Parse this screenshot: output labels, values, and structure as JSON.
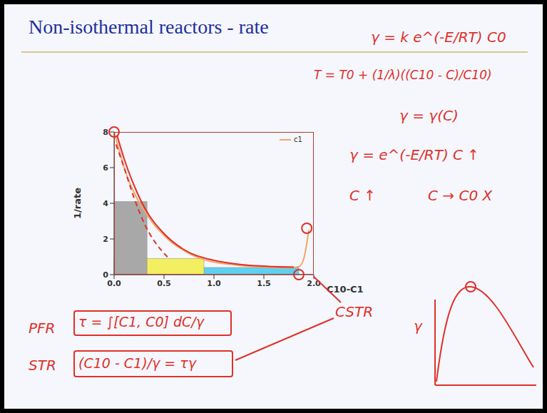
{
  "chart_data": {
    "type": "line",
    "title": "Non-isothermal reactors - rate",
    "x_label": "C10-C1",
    "y_label": "1/rate",
    "xlim": [
      0,
      2
    ],
    "xticks": [
      {
        "value": 0,
        "label": "0.0"
      },
      {
        "value": 0.5,
        "label": "0.5"
      },
      {
        "value": 1,
        "label": "1.0"
      },
      {
        "value": 1.5,
        "label": "1.5"
      },
      {
        "value": 2,
        "label": "2.0"
      }
    ],
    "ylim": [
      0,
      8
    ],
    "yticks": [
      0,
      2,
      4,
      6,
      8
    ],
    "legend": "upper right",
    "series": [
      {
        "name": "c1",
        "color": "#f0a868",
        "line_style": "solid",
        "x": [
          0.0,
          0.05,
          0.1,
          0.2,
          0.3,
          0.4,
          0.5,
          0.6,
          0.7,
          0.8,
          0.9,
          1.0,
          1.2,
          1.4,
          1.6,
          1.75,
          1.85,
          1.9,
          1.95
        ],
        "values": [
          8.0,
          7.0,
          6.0,
          4.6,
          3.6,
          2.8,
          2.2,
          1.7,
          1.35,
          1.05,
          0.85,
          0.7,
          0.55,
          0.45,
          0.4,
          0.38,
          0.45,
          0.9,
          2.5
        ]
      },
      {
        "color": "#e0302a",
        "line_style": "solid",
        "x": [
          0.03,
          0.1,
          0.2,
          0.3,
          0.5,
          0.7,
          1.0,
          1.3,
          1.6,
          1.8
        ],
        "values": [
          7.8,
          6.5,
          5.0,
          3.8,
          2.3,
          1.4,
          0.8,
          0.55,
          0.45,
          0.42
        ]
      },
      {
        "color": "#e0302a",
        "line_style": "dashed",
        "x": [
          0.02,
          0.1,
          0.2,
          0.3,
          0.4,
          0.5,
          0.55
        ],
        "values": [
          7.3,
          6.0,
          4.3,
          2.9,
          1.9,
          1.2,
          0.9
        ]
      }
    ],
    "rectangles": [
      {
        "x": [
          0,
          1.85
        ],
        "height": 0.4,
        "color": "#5fd0f0"
      },
      {
        "x": [
          0,
          0.9
        ],
        "height": 0.9,
        "color": "#f2f060"
      },
      {
        "x": [
          0,
          0.33
        ],
        "height": 4.1,
        "color": "#a8a8a8"
      }
    ],
    "markers": [
      {
        "x": 0,
        "y": 8
      },
      {
        "x": 1.93,
        "y": 2.6
      },
      {
        "x": 1.85,
        "y": 0
      }
    ],
    "annotations": [
      "γ = k e^(-E/RT) C0",
      "T = T0 + (1/λ)((C10 - C)/C10)",
      "γ = γ(C)",
      "γ = e^(-E/RT) C ↑",
      "C ↑",
      "C → C0 X",
      "CSTR",
      "γ",
      "PFR",
      "τ = ∫[C1, C0] dC/γ",
      "STR",
      "(C10 - C1)/γ = τγ"
    ]
  }
}
